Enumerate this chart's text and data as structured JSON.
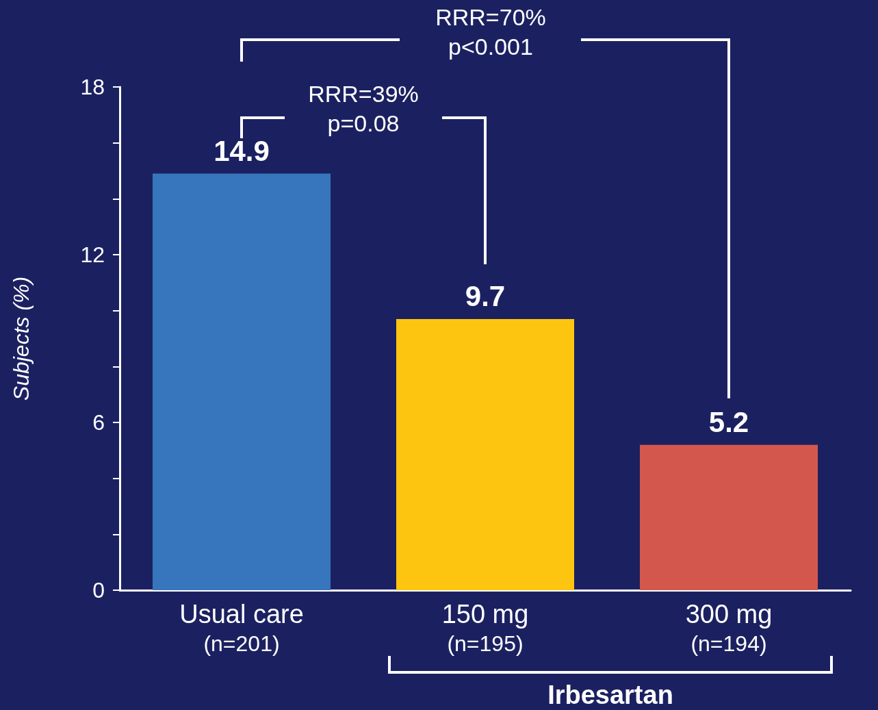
{
  "chart_data": {
    "type": "bar",
    "ylabel": "Subjects (%)",
    "categories": [
      "Usual care\n(n=201)",
      "150 mg\n(n=195)",
      "300 mg\n(n=194)"
    ],
    "values": [
      14.9,
      9.7,
      5.2
    ],
    "colors": [
      "#3776bd",
      "#fdc50f",
      "#d4574e"
    ],
    "ylim": [
      0,
      18
    ],
    "yticks": [
      0,
      {
        "value": 2,
        "label": null
      },
      {
        "value": 4,
        "label": null
      },
      6,
      {
        "value": 8,
        "label": null
      },
      {
        "value": 10,
        "label": null
      },
      12,
      {
        "value": 14,
        "label": null
      },
      {
        "value": 16,
        "label": null
      },
      18
    ],
    "data_labels": true,
    "annotations": [
      "RRR=70%\np<0.001",
      "RRR=39%\np=0.08",
      "Irbesartan"
    ]
  }
}
